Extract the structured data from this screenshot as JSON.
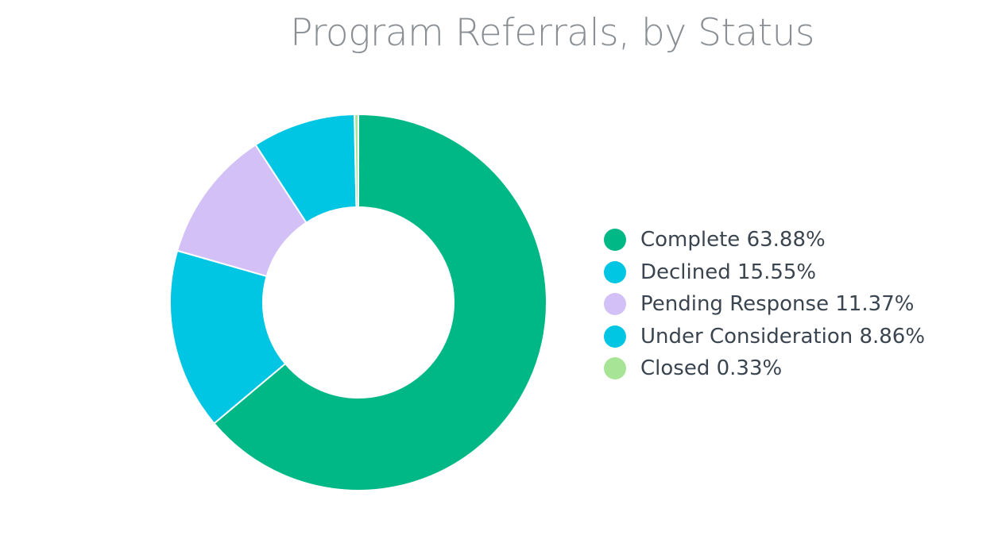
{
  "chart_data": {
    "type": "pie",
    "variant": "donut",
    "title": "Program Referrals, by Status",
    "series": [
      {
        "name": "Complete",
        "value": 63.88,
        "label": "Complete 63.88%",
        "color": "#00b886"
      },
      {
        "name": "Declined",
        "value": 15.55,
        "label": "Declined 15.55%",
        "color": "#00c5e3"
      },
      {
        "name": "Pending Response",
        "value": 11.37,
        "label": "Pending Response 11.37%",
        "color": "#d3c0f7"
      },
      {
        "name": "Under Consideration",
        "value": 8.86,
        "label": "Under Consideration 8.86%",
        "color": "#00c5e3"
      },
      {
        "name": "Closed",
        "value": 0.33,
        "label": "Closed 0.33%",
        "color": "#a8e496"
      }
    ],
    "legend_position": "right"
  }
}
